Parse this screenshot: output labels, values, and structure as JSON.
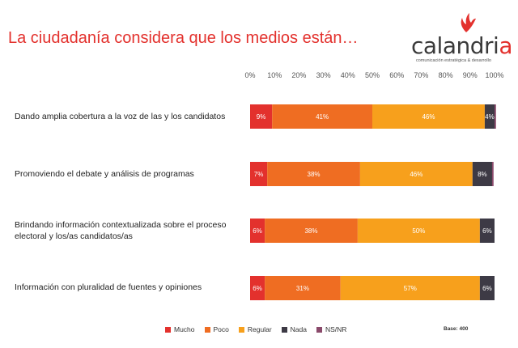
{
  "header": {
    "title": "La ciudadanía considera que los medios están…"
  },
  "logo": {
    "word_main": "calandri",
    "word_accent": "a",
    "tagline": "comunicación estratégica & desarrollo",
    "icon": "bird-icon"
  },
  "colors": {
    "Mucho": "#e3312d",
    "Poco": "#ef6d22",
    "Regular": "#f7a01c",
    "Nada": "#3d3a45",
    "NS/NR": "#8a4a6b"
  },
  "chart_data": {
    "type": "bar",
    "orientation": "horizontal",
    "stacked": true,
    "xlim": [
      0,
      100
    ],
    "x_ticks": [
      "0%",
      "10%",
      "20%",
      "30%",
      "40%",
      "50%",
      "60%",
      "70%",
      "80%",
      "90%",
      "100%"
    ],
    "x_axis_position": "top",
    "categories": [
      "Dando amplia cobertura a la voz de las y los candidatos",
      "Promoviendo el debate y análisis de programas",
      "Brindando información contextualizada sobre el proceso electoral y los/as candidatos/as",
      "Información con pluralidad de fuentes y opiniones"
    ],
    "series": [
      {
        "name": "Mucho",
        "values": [
          9,
          7,
          6,
          6
        ],
        "labels": [
          "9%",
          "7%",
          "6%",
          "6%"
        ]
      },
      {
        "name": "Poco",
        "values": [
          41,
          38,
          38,
          31
        ],
        "labels": [
          "41%",
          "38%",
          "38%",
          "31%"
        ]
      },
      {
        "name": "Regular",
        "values": [
          46,
          46,
          50,
          57
        ],
        "labels": [
          "46%",
          "46%",
          "50%",
          "57%"
        ]
      },
      {
        "name": "Nada",
        "values": [
          4,
          8,
          6,
          6
        ],
        "labels": [
          "4%",
          "8%",
          "6%",
          "6%"
        ]
      },
      {
        "name": "NS/NR",
        "values": [
          0.6,
          0.6,
          0,
          0
        ],
        "labels": [
          "",
          "",
          "",
          ""
        ]
      }
    ],
    "legend_position": "bottom",
    "grid": false,
    "note": "Base: 400"
  }
}
